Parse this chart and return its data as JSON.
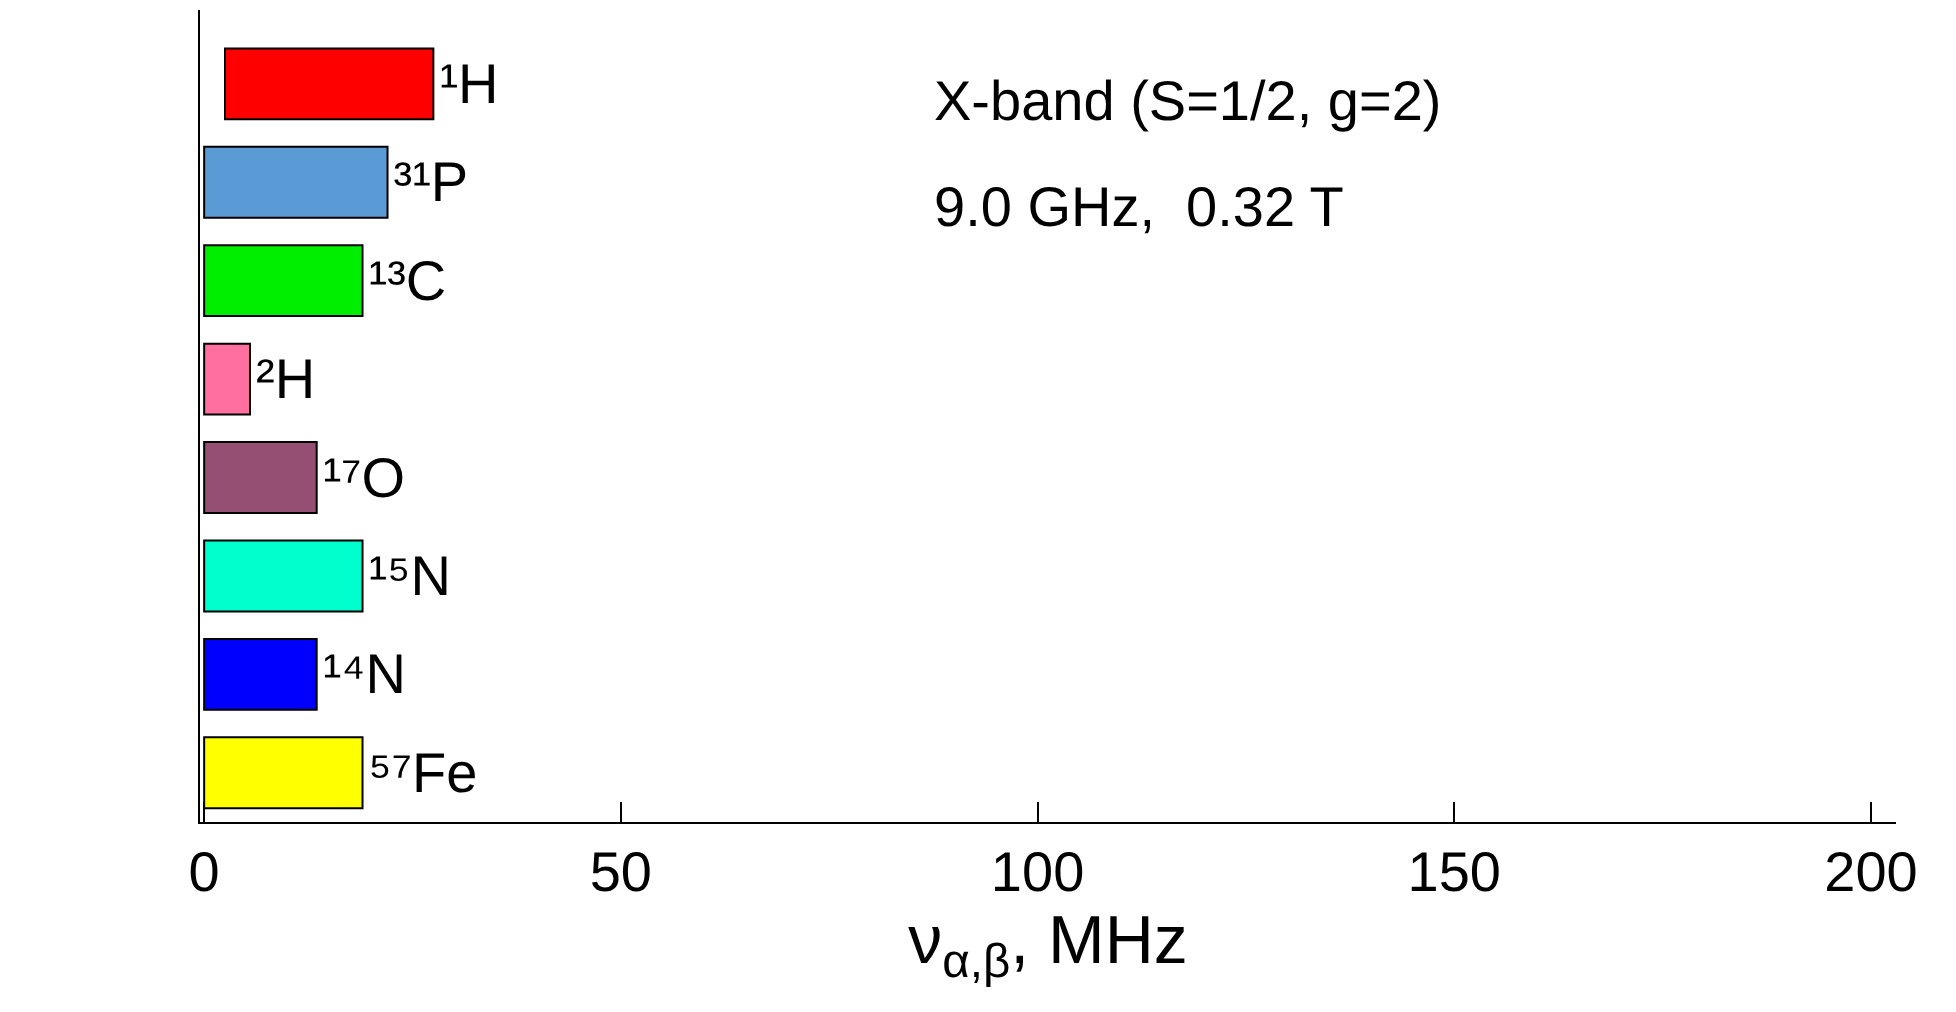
{
  "chart_data": {
    "type": "bar",
    "orientation": "horizontal",
    "xlabel": "ν$_{α,β}$, MHz",
    "categories": [
      "¹H",
      "³¹P",
      "¹³C",
      "²H",
      "¹⁷O",
      "¹⁵N",
      "¹⁴N",
      "⁵⁷Fe"
    ],
    "values": [
      25,
      22,
      19,
      5.5,
      13.5,
      19,
      13.5,
      19
    ],
    "base": [
      2.5,
      0,
      0,
      0,
      0,
      0,
      0,
      0
    ],
    "colors": [
      "#ff0000",
      "#5b9bd5",
      "#00ee00",
      "#ff6fa0",
      "#954f72",
      "#00ffcc",
      "#0000ff",
      "#ffff00"
    ],
    "xlim": [
      -0.5,
      203
    ],
    "xticks": [
      0,
      50,
      100,
      150,
      200
    ],
    "tick_labels": "x",
    "legend": false,
    "annotations": [
      "X-band (S=1/2, g=2)",
      "9.0 GHz,  0.32 T"
    ]
  }
}
